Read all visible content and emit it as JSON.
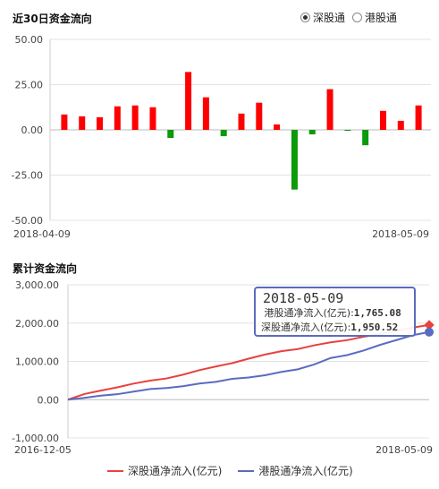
{
  "header": {
    "title1": "近30日资金流向",
    "title2": "累计资金流向",
    "radios": [
      {
        "label": "深股通",
        "selected": true
      },
      {
        "label": "港股通",
        "selected": false
      }
    ]
  },
  "tooltip": {
    "date": "2018-05-09",
    "line1_label": "港股通净流入(亿元):",
    "line1_value": "1,765.08",
    "line2_label": "深股通净流入(亿元):",
    "line2_value": "1,950.52"
  },
  "colors": {
    "positive": "#ff0000",
    "negative": "#0a9a0a",
    "shen": "#e8413d",
    "gang": "#5b6bbf"
  },
  "chart_data": [
    {
      "type": "bar",
      "title": "近30日资金流向",
      "ylim": [
        -50,
        50
      ],
      "yticks": [
        "50.00",
        "25.00",
        "0.00",
        "-25.00",
        "-50.00"
      ],
      "x_start_label": "2018-04-09",
      "x_end_label": "2018-05-09",
      "values": [
        8.5,
        7.5,
        7,
        13,
        13.5,
        12.5,
        -4.5,
        32,
        18,
        -3.5,
        9,
        15,
        3,
        -33,
        -2.5,
        22.5,
        -0.5,
        -8.5,
        10.5,
        5,
        13.5
      ],
      "grid": true
    },
    {
      "type": "line",
      "title": "累计资金流向",
      "ylim": [
        -1000,
        3000
      ],
      "yticks": [
        "3,000.00",
        "2,000.00",
        "1,000.00",
        "0.00",
        "-1,000.00"
      ],
      "x_start_label": "2016-12-05",
      "x_end_label": "2018-05-09",
      "grid": true,
      "series": [
        {
          "name": "深股通净流入(亿元)",
          "values": [
            0,
            150,
            230,
            330,
            420,
            490,
            560,
            650,
            760,
            870,
            950,
            1080,
            1180,
            1260,
            1330,
            1420,
            1490,
            1560,
            1640,
            1700,
            1800,
            1880,
            1950.52
          ]
        },
        {
          "name": "港股通净流入(亿元)",
          "values": [
            0,
            50,
            100,
            150,
            210,
            270,
            310,
            350,
            410,
            470,
            540,
            590,
            640,
            720,
            800,
            920,
            1080,
            1170,
            1280,
            1420,
            1560,
            1680,
            1765.08
          ]
        }
      ]
    }
  ]
}
